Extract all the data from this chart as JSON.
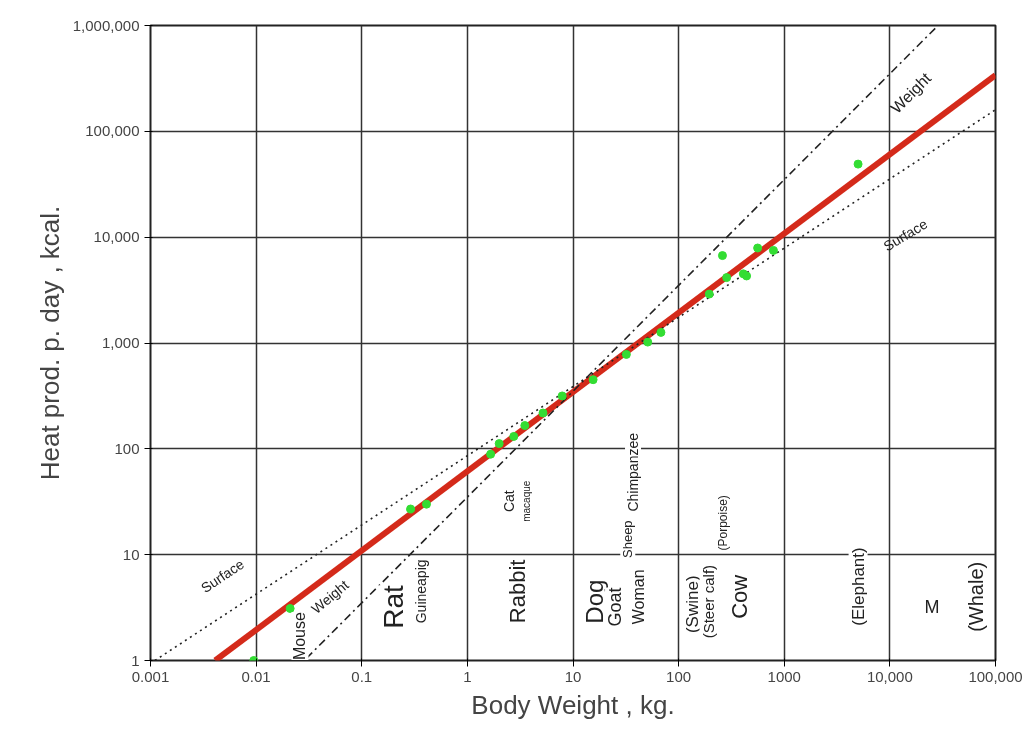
{
  "chart_data": {
    "type": "scatter",
    "xlabel": "Body Weight , kg.",
    "ylabel": "Heat prod. p. day , kcal.",
    "log": "xy",
    "grid": true,
    "marker": "circle",
    "xlim": [
      0.001,
      100000
    ],
    "ylim": [
      1,
      1000000
    ],
    "xticks": [
      0.001,
      0.01,
      0.1,
      1,
      10,
      100,
      1000,
      {
        "value": 10000,
        "label": "10,000"
      },
      {
        "value": 100000,
        "label": "100,000"
      }
    ],
    "yticks": [
      1,
      10,
      100,
      {
        "value": 1000,
        "label": "1,000"
      },
      {
        "value": 10000,
        "label": "10,000"
      },
      {
        "value": 100000,
        "label": "100,000"
      },
      {
        "value": 1000000,
        "label": "1,000,000"
      }
    ],
    "series": [
      {
        "type": "line",
        "marker": "none",
        "color": "#d42a1a",
        "x": [
          0.0041,
          100000
        ],
        "values": [
          1,
          340000
        ]
      },
      {
        "type": "line",
        "marker": "none",
        "color": "#222222",
        "line_style": "dashed",
        "x": [
          0.03,
          28000
        ],
        "values": [
          1.05,
          980000
        ]
      },
      {
        "type": "line",
        "marker": "none",
        "color": "#222222",
        "line_style": "dotted",
        "x": [
          0.0011,
          100000
        ],
        "values": [
          1,
          160000
        ]
      },
      {
        "color": "#33dd33",
        "x": [
          0.0095,
          0.021,
          0.29,
          0.41,
          1.66,
          2.0,
          2.75,
          3.5,
          5.2,
          7.9,
          15.5,
          32,
          51,
          68,
          195,
          285,
          410,
          260,
          560,
          440,
          790,
          5000
        ],
        "values": [
          1,
          3.1,
          27,
          30,
          89,
          112,
          131,
          166,
          218,
          316,
          450,
          780,
          1020,
          1260,
          2900,
          4150,
          4500,
          6700,
          7900,
          4300,
          7500,
          49000
        ]
      }
    ],
    "annotations": [
      "Weight",
      "Surface",
      "Surface",
      "Weight",
      "Mouse",
      "Rat",
      "Guineapig",
      "Rabbit",
      "Cat",
      "macaque",
      "Dog",
      "Goat",
      "Sheep",
      "Woman",
      "Chimpanzee",
      "(Swine)",
      "(Steer calf)",
      "(Porpoise)",
      "Cow",
      "(Elephant)",
      "M",
      "(Whale)"
    ]
  }
}
